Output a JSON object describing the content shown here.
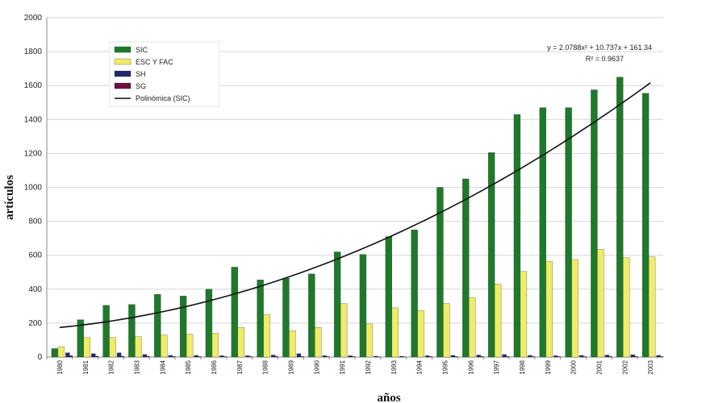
{
  "chart_data": {
    "type": "bar",
    "title": "",
    "xlabel": "años",
    "ylabel": "artículos",
    "ylim": [
      0,
      2000
    ],
    "yticks": [
      0,
      200,
      400,
      600,
      800,
      1000,
      1200,
      1400,
      1600,
      1800,
      2000
    ],
    "grid": true,
    "legend_placement": "top-left",
    "categories": [
      "1980",
      "1981",
      "1982",
      "1983",
      "1984",
      "1985",
      "1986",
      "1987",
      "1988",
      "1989",
      "1990",
      "1991",
      "1992",
      "1993",
      "1994",
      "1995",
      "1996",
      "1997",
      "1998",
      "1999",
      "2000",
      "2001",
      "2002",
      "2003"
    ],
    "series": [
      {
        "name": "SIC",
        "color": "#1e7a2a",
        "values": [
          50,
          220,
          305,
          310,
          370,
          360,
          400,
          530,
          455,
          465,
          490,
          620,
          605,
          710,
          750,
          1000,
          1050,
          1205,
          1430,
          1470,
          1470,
          1575,
          1650,
          1555
        ]
      },
      {
        "name": "ESC Y FAC",
        "color": "#f0ec6a",
        "values": [
          60,
          115,
          115,
          120,
          130,
          135,
          140,
          175,
          250,
          155,
          175,
          315,
          195,
          290,
          275,
          315,
          350,
          430,
          505,
          565,
          575,
          635,
          585,
          590
        ]
      },
      {
        "name": "SH",
        "color": "#1d2b6e",
        "values": [
          25,
          20,
          25,
          15,
          10,
          10,
          8,
          8,
          12,
          20,
          8,
          8,
          5,
          5,
          8,
          10,
          12,
          15,
          10,
          8,
          10,
          12,
          14,
          10
        ]
      },
      {
        "name": "SG",
        "color": "#6a1040",
        "values": [
          8,
          6,
          5,
          5,
          4,
          4,
          3,
          3,
          5,
          4,
          3,
          3,
          2,
          2,
          3,
          3,
          4,
          4,
          3,
          3,
          3,
          4,
          4,
          3
        ]
      }
    ],
    "trendline": {
      "name": "Polinómica (SIC)",
      "color": "#111111",
      "equation": "y = 2.0788x² + 10.737x + 161.34",
      "r2": "R² = 0.9637",
      "coefficients": {
        "a": 2.0788,
        "b": 10.737,
        "c": 161.34
      }
    }
  }
}
